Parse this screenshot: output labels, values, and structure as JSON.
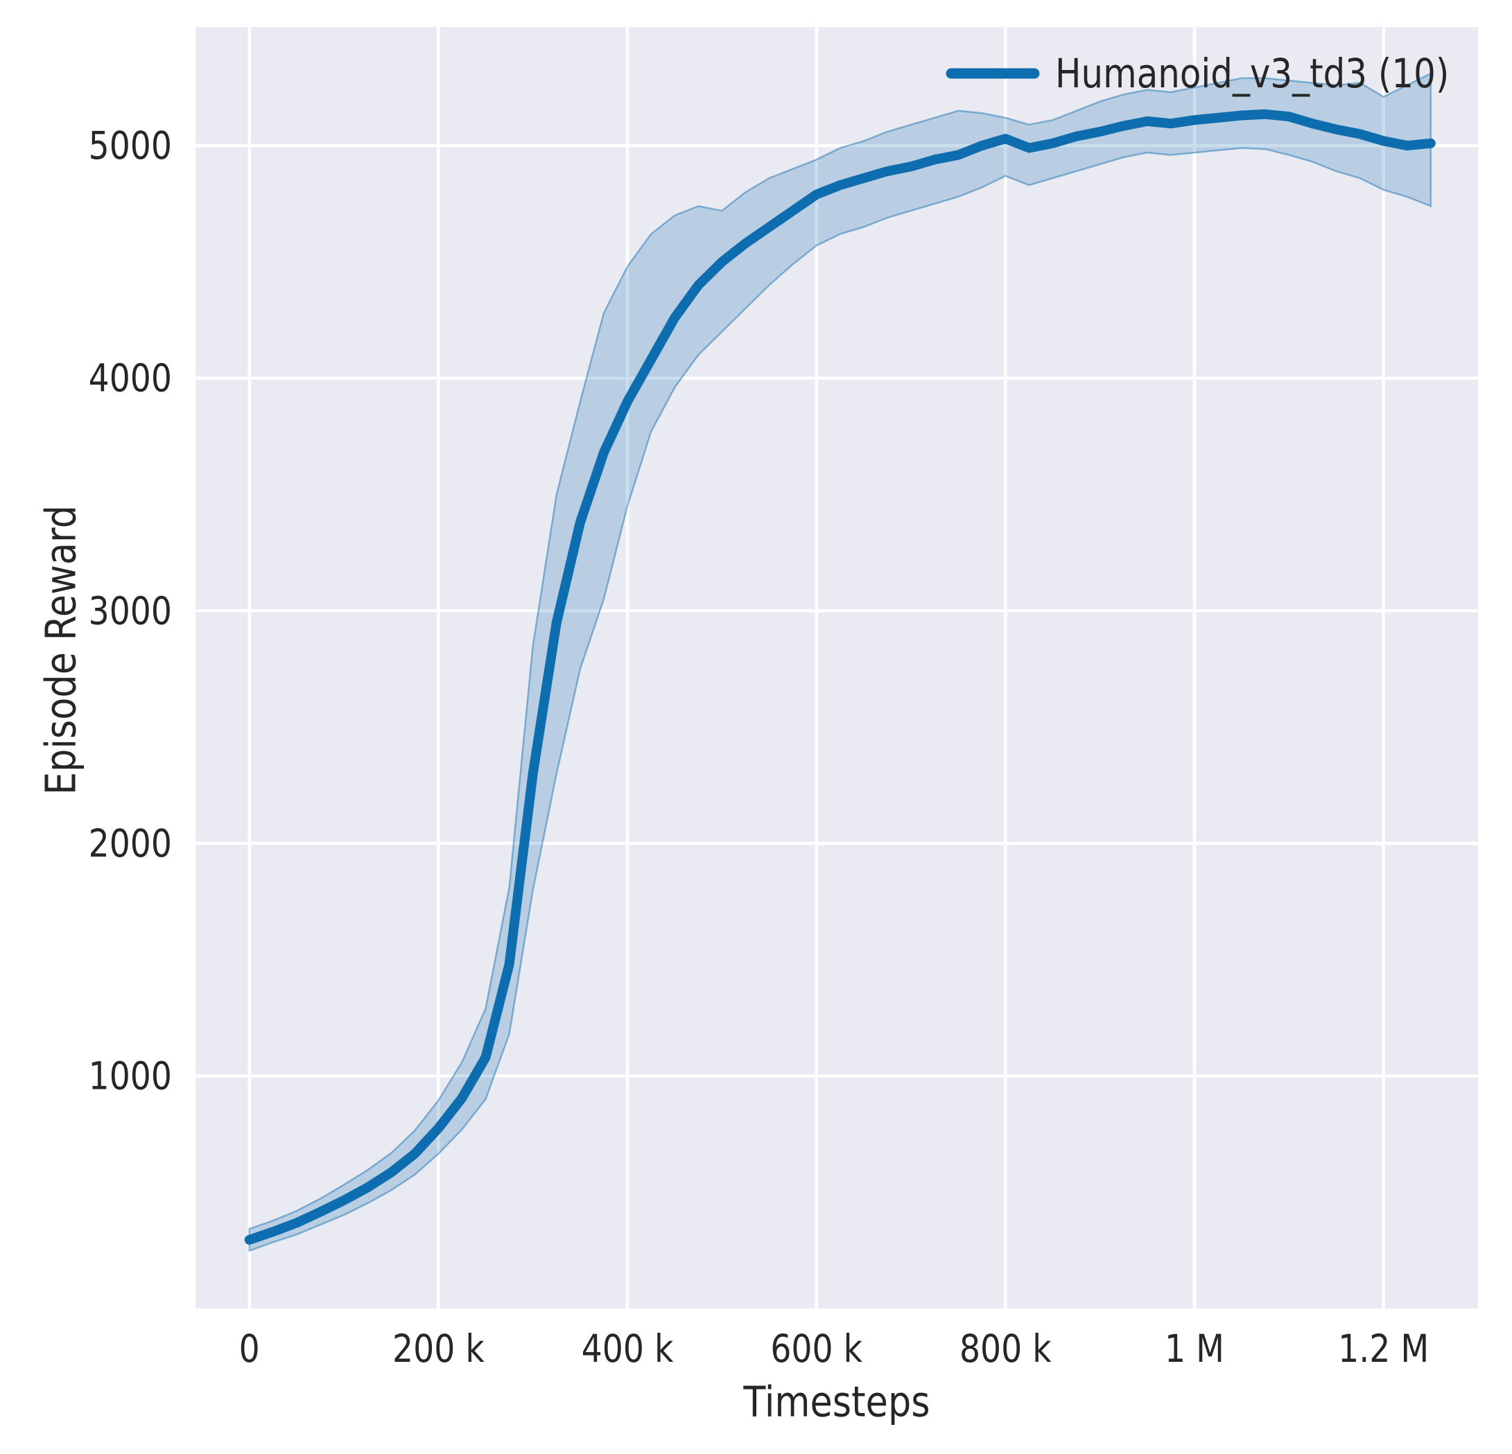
{
  "figure": {
    "background": "#ffffff",
    "plot_background": "#eaeaf2",
    "grid_color": "#ffffff",
    "text_color": "#262626",
    "accent_color": "#0e6dae"
  },
  "legend": {
    "entries": [
      {
        "label": "Humanoid_v3_td3 (10)",
        "color": "#0e6dae"
      }
    ],
    "position": "upper right"
  },
  "chart_data": {
    "type": "line",
    "title": "",
    "xlabel": "Timesteps",
    "ylabel": "Episode Reward",
    "grid": true,
    "legend_position": "upper right",
    "xlim": [
      -57000,
      1300000
    ],
    "ylim": [
      0,
      5510
    ],
    "x_ticks": [
      {
        "value": 0,
        "label": "0"
      },
      {
        "value": 200000,
        "label": "200 k"
      },
      {
        "value": 400000,
        "label": "400 k"
      },
      {
        "value": 600000,
        "label": "600 k"
      },
      {
        "value": 800000,
        "label": "800 k"
      },
      {
        "value": 1000000,
        "label": "1 M"
      },
      {
        "value": 1200000,
        "label": "1.2 M"
      }
    ],
    "y_ticks": [
      {
        "value": 1000,
        "label": "1000"
      },
      {
        "value": 2000,
        "label": "2000"
      },
      {
        "value": 3000,
        "label": "3000"
      },
      {
        "value": 4000,
        "label": "4000"
      },
      {
        "value": 5000,
        "label": "5000"
      }
    ],
    "series": [
      {
        "name": "Humanoid_v3_td3 (10)",
        "color": "#0e6dae",
        "band_fill_opacity": 0.22,
        "x": [
          0,
          25000,
          50000,
          75000,
          100000,
          125000,
          150000,
          175000,
          200000,
          225000,
          250000,
          275000,
          300000,
          325000,
          350000,
          375000,
          400000,
          425000,
          450000,
          475000,
          500000,
          525000,
          550000,
          575000,
          600000,
          625000,
          650000,
          675000,
          700000,
          725000,
          750000,
          775000,
          800000,
          825000,
          850000,
          875000,
          900000,
          925000,
          950000,
          975000,
          1000000,
          1025000,
          1050000,
          1075000,
          1100000,
          1125000,
          1150000,
          1175000,
          1200000,
          1225000,
          1250000
        ],
        "mean": [
          295,
          330,
          368,
          415,
          465,
          520,
          585,
          665,
          775,
          905,
          1080,
          1480,
          2300,
          2950,
          3380,
          3680,
          3900,
          4080,
          4260,
          4400,
          4500,
          4580,
          4650,
          4720,
          4790,
          4830,
          4860,
          4890,
          4910,
          4940,
          4960,
          5000,
          5030,
          4990,
          5010,
          5040,
          5060,
          5085,
          5105,
          5095,
          5110,
          5120,
          5130,
          5135,
          5125,
          5095,
          5070,
          5050,
          5020,
          5000,
          5010
        ],
        "lo": [
          248,
          285,
          318,
          360,
          402,
          452,
          508,
          575,
          665,
          770,
          900,
          1180,
          1800,
          2300,
          2750,
          3050,
          3450,
          3770,
          3960,
          4100,
          4200,
          4300,
          4400,
          4490,
          4570,
          4620,
          4650,
          4690,
          4720,
          4750,
          4780,
          4820,
          4870,
          4830,
          4860,
          4890,
          4920,
          4950,
          4970,
          4960,
          4970,
          4980,
          4990,
          4985,
          4960,
          4930,
          4890,
          4860,
          4810,
          4780,
          4740
        ],
        "hi": [
          342,
          378,
          420,
          472,
          532,
          595,
          668,
          765,
          895,
          1060,
          1290,
          1810,
          2850,
          3500,
          3900,
          4280,
          4480,
          4620,
          4700,
          4740,
          4720,
          4800,
          4860,
          4900,
          4940,
          4990,
          5020,
          5060,
          5090,
          5120,
          5150,
          5140,
          5120,
          5090,
          5110,
          5150,
          5190,
          5220,
          5240,
          5230,
          5250,
          5270,
          5290,
          5290,
          5280,
          5270,
          5260,
          5270,
          5210,
          5260,
          5310
        ]
      }
    ]
  }
}
